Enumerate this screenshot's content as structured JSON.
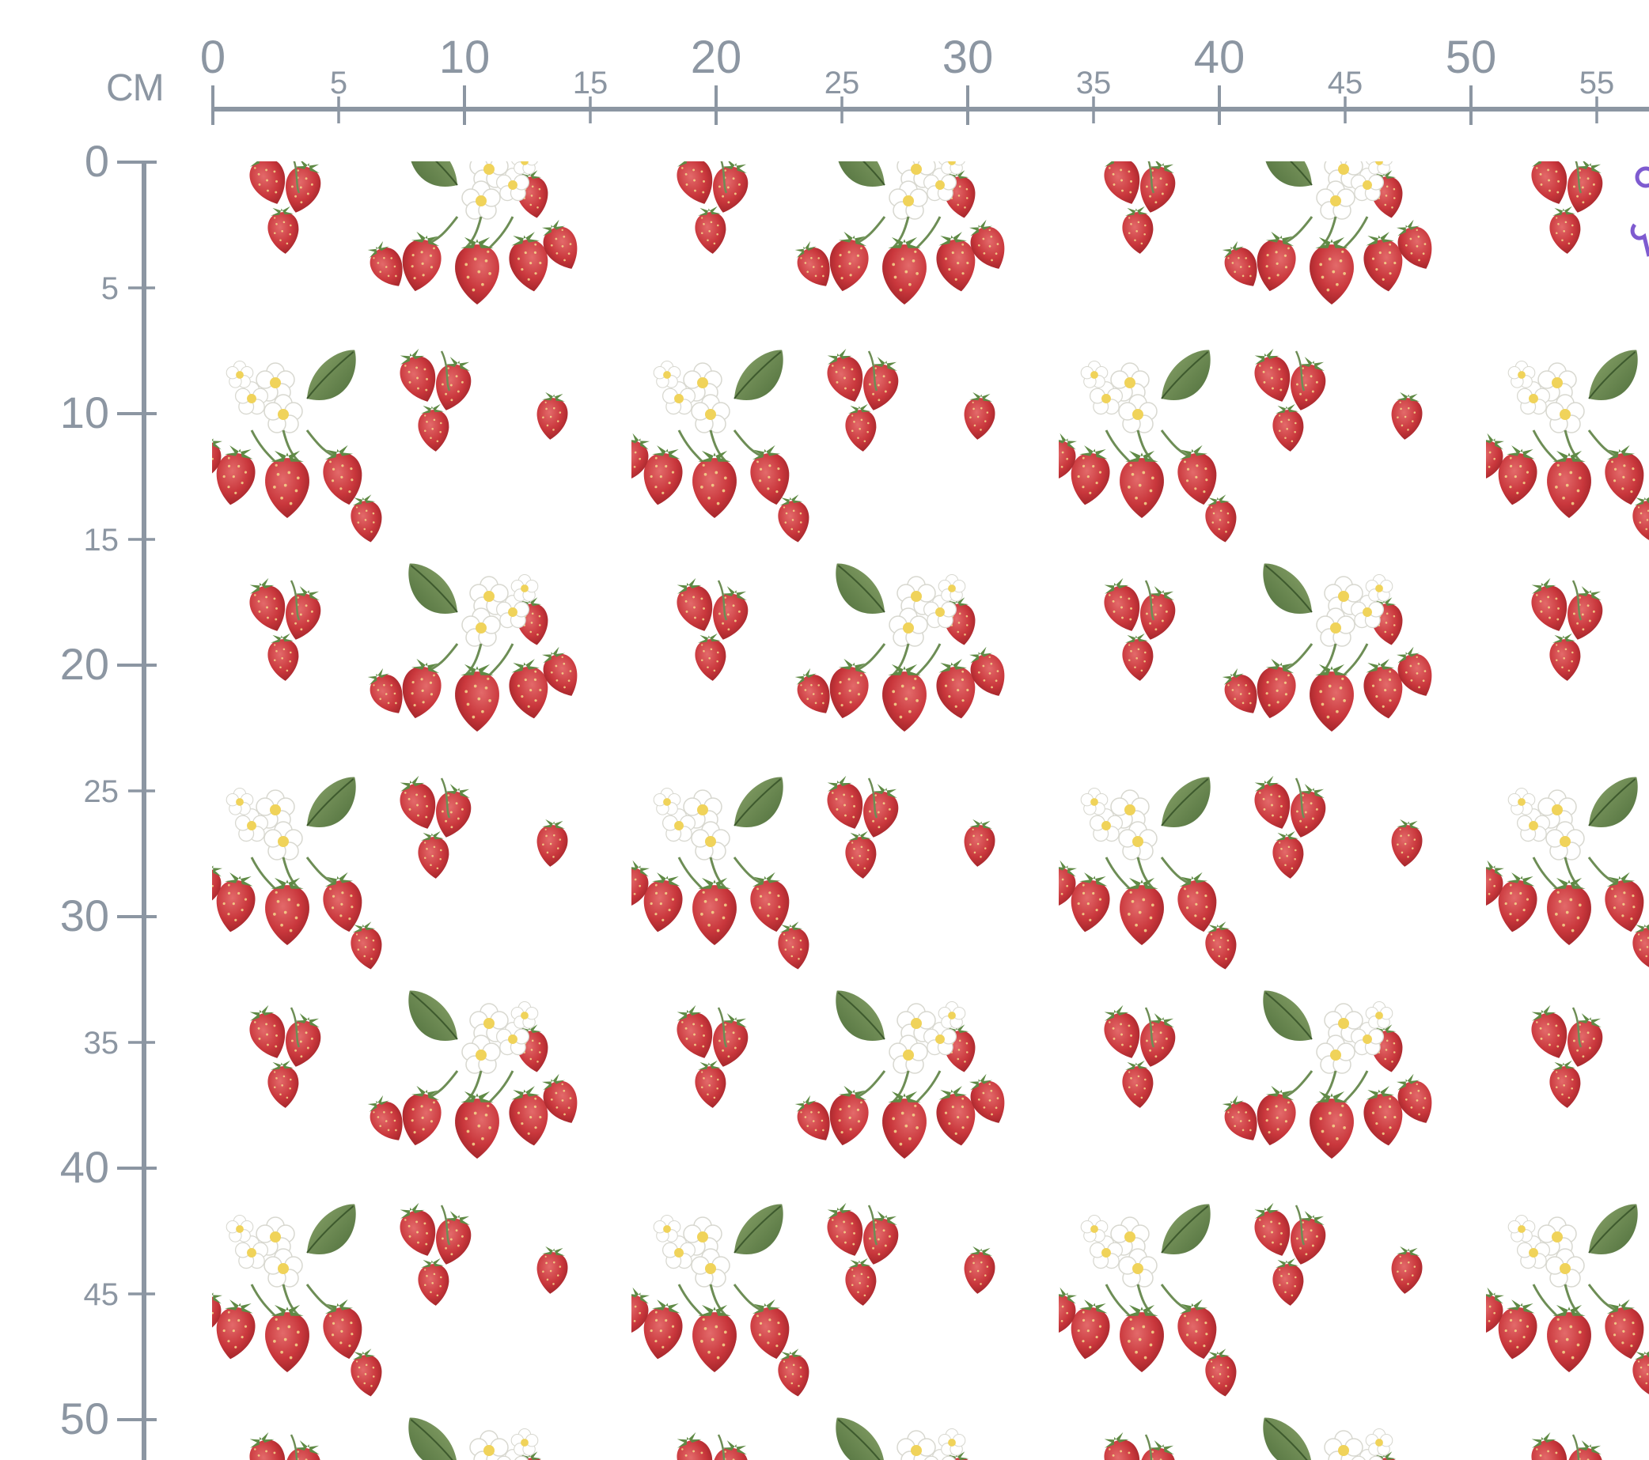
{
  "ruler": {
    "unit_label": "CM",
    "top_major_labels": [
      "0",
      "10",
      "20",
      "30",
      "40",
      "50"
    ],
    "top_minor_labels": [
      "5",
      "15",
      "25",
      "35",
      "45",
      "55"
    ],
    "left_major_labels": [
      "0",
      "10",
      "20",
      "30",
      "40",
      "50"
    ],
    "left_minor_labels": [
      "5",
      "15",
      "25",
      "35",
      "45"
    ],
    "color": "#8c96a2"
  },
  "fabric": {
    "pattern": "strawberries-with-white-blossoms-and-leaves",
    "background_color": "#ffffff",
    "strawberry_color": "#c9373c",
    "leaf_color": "#6d8d55",
    "blossom_color": "#ffffff",
    "blossom_center_color": "#f0d35a"
  },
  "corner_mark": {
    "color": "#7e5bd0",
    "icon": "purple-scissors-icon"
  }
}
